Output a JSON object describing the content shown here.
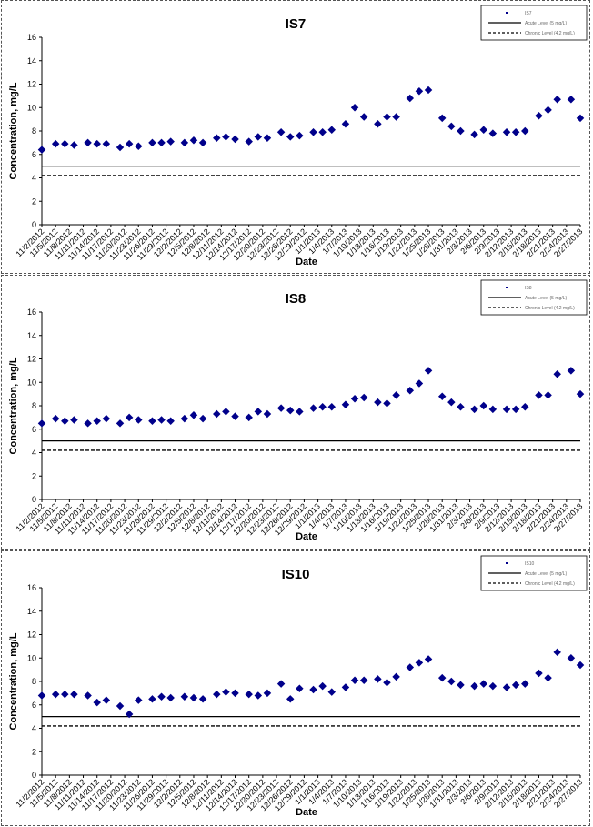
{
  "chart_data": [
    {
      "type": "scatter",
      "title": "IS7",
      "x_label": "Date",
      "y_label": "Concentration, mg/L",
      "x": [
        "11/2/2012",
        "11/5/2012",
        "11/7/2012",
        "11/9/2012",
        "11/12/2012",
        "11/14/2012",
        "11/16/2012",
        "11/19/2012",
        "11/21/2012",
        "11/23/2012",
        "11/26/2012",
        "11/28/2012",
        "11/30/2012",
        "12/3/2012",
        "12/5/2012",
        "12/7/2012",
        "12/10/2012",
        "12/12/2012",
        "12/14/2012",
        "12/17/2012",
        "12/19/2012",
        "12/21/2012",
        "12/24/2012",
        "12/26/2012",
        "12/28/2012",
        "12/31/2012",
        "1/2/2013",
        "1/4/2013",
        "1/7/2013",
        "1/9/2013",
        "1/11/2013",
        "1/14/2013",
        "1/16/2013",
        "1/18/2013",
        "1/21/2013",
        "1/23/2013",
        "1/25/2013",
        "1/28/2013",
        "1/30/2013",
        "2/1/2013",
        "2/4/2013",
        "2/6/2013",
        "2/8/2013",
        "2/11/2013",
        "2/13/2013",
        "2/15/2013",
        "2/18/2013",
        "2/20/2013",
        "2/22/2013",
        "2/25/2013",
        "2/27/2013"
      ],
      "series": [
        {
          "name": "IS7",
          "color": "#00008b",
          "values": [
            6.4,
            6.9,
            6.9,
            6.8,
            7.0,
            6.9,
            6.9,
            6.6,
            6.9,
            6.7,
            7.0,
            7.0,
            7.1,
            7.0,
            7.2,
            7.0,
            7.4,
            7.5,
            7.3,
            7.1,
            7.5,
            7.4,
            7.9,
            7.5,
            7.6,
            7.9,
            7.9,
            8.1,
            8.6,
            10.0,
            9.2,
            8.6,
            9.2,
            9.2,
            10.8,
            11.4,
            11.5,
            9.1,
            8.4,
            8.0,
            7.7,
            8.1,
            7.8,
            7.9,
            7.9,
            8.0,
            9.3,
            9.8,
            10.7,
            10.7,
            9.1
          ]
        }
      ],
      "reference_lines": [
        {
          "name": "Acute Level (5 mg/L)",
          "value": 5,
          "style": "solid",
          "color": "#000000"
        },
        {
          "name": "Chronic Level (4.2 mg/L)",
          "value": 4.2,
          "style": "dashed",
          "color": "#000000"
        }
      ],
      "xlim": [
        "11/2/2012",
        "2/27/2013"
      ],
      "xticks": [
        "11/2/2012",
        "11/5/2012",
        "11/8/2012",
        "11/11/2012",
        "11/14/2012",
        "11/17/2012",
        "11/20/2012",
        "11/23/2012",
        "11/26/2012",
        "11/29/2012",
        "12/2/2012",
        "12/5/2012",
        "12/8/2012",
        "12/11/2012",
        "12/14/2012",
        "12/17/2012",
        "12/20/2012",
        "12/23/2012",
        "12/26/2012",
        "12/29/2012",
        "1/1/2013",
        "1/4/2013",
        "1/7/2013",
        "1/10/2013",
        "1/13/2013",
        "1/16/2013",
        "1/19/2013",
        "1/22/2013",
        "1/25/2013",
        "1/28/2013",
        "1/31/2013",
        "2/3/2013",
        "2/6/2013",
        "2/9/2013",
        "2/12/2013",
        "2/15/2013",
        "2/18/2013",
        "2/21/2013",
        "2/24/2013",
        "2/27/2013"
      ],
      "ylim": [
        0,
        16
      ],
      "yticks": [
        0,
        2,
        4,
        6,
        8,
        10,
        12,
        14,
        16
      ],
      "legend": "top-right"
    },
    {
      "type": "scatter",
      "title": "IS8",
      "x_label": "Date",
      "y_label": "Concentration, mg/L",
      "x": [
        "11/2/2012",
        "11/5/2012",
        "11/7/2012",
        "11/9/2012",
        "11/12/2012",
        "11/14/2012",
        "11/16/2012",
        "11/19/2012",
        "11/21/2012",
        "11/23/2012",
        "11/26/2012",
        "11/28/2012",
        "11/30/2012",
        "12/3/2012",
        "12/5/2012",
        "12/7/2012",
        "12/10/2012",
        "12/12/2012",
        "12/14/2012",
        "12/17/2012",
        "12/19/2012",
        "12/21/2012",
        "12/24/2012",
        "12/26/2012",
        "12/28/2012",
        "12/31/2012",
        "1/2/2013",
        "1/4/2013",
        "1/7/2013",
        "1/9/2013",
        "1/11/2013",
        "1/14/2013",
        "1/16/2013",
        "1/18/2013",
        "1/21/2013",
        "1/23/2013",
        "1/25/2013",
        "1/28/2013",
        "1/30/2013",
        "2/1/2013",
        "2/4/2013",
        "2/6/2013",
        "2/8/2013",
        "2/11/2013",
        "2/13/2013",
        "2/15/2013",
        "2/18/2013",
        "2/20/2013",
        "2/22/2013",
        "2/25/2013",
        "2/27/2013"
      ],
      "series": [
        {
          "name": "IS8",
          "color": "#00008b",
          "values": [
            6.5,
            6.9,
            6.7,
            6.8,
            6.5,
            6.7,
            6.9,
            6.5,
            7.0,
            6.8,
            6.7,
            6.8,
            6.7,
            6.9,
            7.2,
            6.9,
            7.3,
            7.5,
            7.1,
            7.0,
            7.5,
            7.3,
            7.8,
            7.6,
            7.5,
            7.8,
            7.9,
            7.9,
            8.1,
            8.6,
            8.7,
            8.3,
            8.2,
            8.9,
            9.3,
            9.9,
            11.0,
            8.8,
            8.3,
            7.9,
            7.7,
            8.0,
            7.7,
            7.7,
            7.7,
            7.9,
            8.9,
            8.9,
            10.7,
            11.0,
            9.0
          ]
        }
      ],
      "reference_lines": [
        {
          "name": "Acute Level (5 mg/L)",
          "value": 5,
          "style": "solid",
          "color": "#000000"
        },
        {
          "name": "Chronic Level (4.2 mg/L)",
          "value": 4.2,
          "style": "dashed",
          "color": "#000000"
        }
      ],
      "xlim": [
        "11/2/2012",
        "2/27/2013"
      ],
      "xticks": [
        "11/2/2012",
        "11/5/2012",
        "11/8/2012",
        "11/11/2012",
        "11/14/2012",
        "11/17/2012",
        "11/20/2012",
        "11/23/2012",
        "11/26/2012",
        "11/29/2012",
        "12/2/2012",
        "12/5/2012",
        "12/8/2012",
        "12/11/2012",
        "12/14/2012",
        "12/17/2012",
        "12/20/2012",
        "12/23/2012",
        "12/26/2012",
        "12/29/2012",
        "1/1/2013",
        "1/4/2013",
        "1/7/2013",
        "1/10/2013",
        "1/13/2013",
        "1/16/2013",
        "1/19/2013",
        "1/22/2013",
        "1/25/2013",
        "1/28/2013",
        "1/31/2013",
        "2/3/2013",
        "2/6/2013",
        "2/9/2013",
        "2/12/2013",
        "2/15/2013",
        "2/18/2013",
        "2/21/2013",
        "2/24/2013",
        "2/27/2013"
      ],
      "ylim": [
        0,
        16
      ],
      "yticks": [
        0,
        2,
        4,
        6,
        8,
        10,
        12,
        14,
        16
      ],
      "legend": "top-right"
    },
    {
      "type": "scatter",
      "title": "IS10",
      "x_label": "Date",
      "y_label": "Concentration, mg/L",
      "x": [
        "11/2/2012",
        "11/5/2012",
        "11/7/2012",
        "11/9/2012",
        "11/12/2012",
        "11/14/2012",
        "11/16/2012",
        "11/19/2012",
        "11/21/2012",
        "11/23/2012",
        "11/26/2012",
        "11/28/2012",
        "11/30/2012",
        "12/3/2012",
        "12/5/2012",
        "12/7/2012",
        "12/10/2012",
        "12/12/2012",
        "12/14/2012",
        "12/17/2012",
        "12/19/2012",
        "12/21/2012",
        "12/24/2012",
        "12/26/2012",
        "12/28/2012",
        "12/31/2012",
        "1/2/2013",
        "1/4/2013",
        "1/7/2013",
        "1/9/2013",
        "1/11/2013",
        "1/14/2013",
        "1/16/2013",
        "1/18/2013",
        "1/21/2013",
        "1/23/2013",
        "1/25/2013",
        "1/28/2013",
        "1/30/2013",
        "2/1/2013",
        "2/4/2013",
        "2/6/2013",
        "2/8/2013",
        "2/11/2013",
        "2/13/2013",
        "2/15/2013",
        "2/18/2013",
        "2/20/2013",
        "2/22/2013",
        "2/25/2013",
        "2/27/2013"
      ],
      "series": [
        {
          "name": "IS10",
          "color": "#00008b",
          "values": [
            6.8,
            6.9,
            6.9,
            6.9,
            6.8,
            6.2,
            6.4,
            5.9,
            5.2,
            6.4,
            6.5,
            6.7,
            6.6,
            6.7,
            6.6,
            6.5,
            6.9,
            7.1,
            7.0,
            6.9,
            6.8,
            7.0,
            7.8,
            6.5,
            7.4,
            7.3,
            7.6,
            7.1,
            7.5,
            8.1,
            8.1,
            8.2,
            7.9,
            8.4,
            9.2,
            9.6,
            9.9,
            8.3,
            8.0,
            7.7,
            7.6,
            7.8,
            7.6,
            7.5,
            7.7,
            7.8,
            8.7,
            8.3,
            10.5,
            10.0,
            9.4
          ]
        }
      ],
      "reference_lines": [
        {
          "name": "Acute Level (5 mg/L)",
          "value": 5,
          "style": "solid",
          "color": "#000000"
        },
        {
          "name": "Chronic Level (4.2 mg/L)",
          "value": 4.2,
          "style": "dashed",
          "color": "#000000"
        }
      ],
      "xlim": [
        "11/2/2012",
        "2/27/2013"
      ],
      "xticks": [
        "11/2/2012",
        "11/5/2012",
        "11/8/2012",
        "11/11/2012",
        "11/14/2012",
        "11/17/2012",
        "11/20/2012",
        "11/23/2012",
        "11/26/2012",
        "11/29/2012",
        "12/2/2012",
        "12/5/2012",
        "12/8/2012",
        "12/11/2012",
        "12/14/2012",
        "12/17/2012",
        "12/20/2012",
        "12/23/2012",
        "12/26/2012",
        "12/29/2012",
        "1/1/2013",
        "1/4/2013",
        "1/7/2013",
        "1/10/2013",
        "1/13/2013",
        "1/16/2013",
        "1/19/2013",
        "1/22/2013",
        "1/25/2013",
        "1/28/2013",
        "1/31/2013",
        "2/3/2013",
        "2/6/2013",
        "2/9/2013",
        "2/12/2013",
        "2/15/2013",
        "2/18/2013",
        "2/21/2013",
        "2/24/2013",
        "2/27/2013"
      ],
      "ylim": [
        0,
        16
      ],
      "yticks": [
        0,
        2,
        4,
        6,
        8,
        10,
        12,
        14,
        16
      ],
      "legend": "top-right"
    }
  ]
}
